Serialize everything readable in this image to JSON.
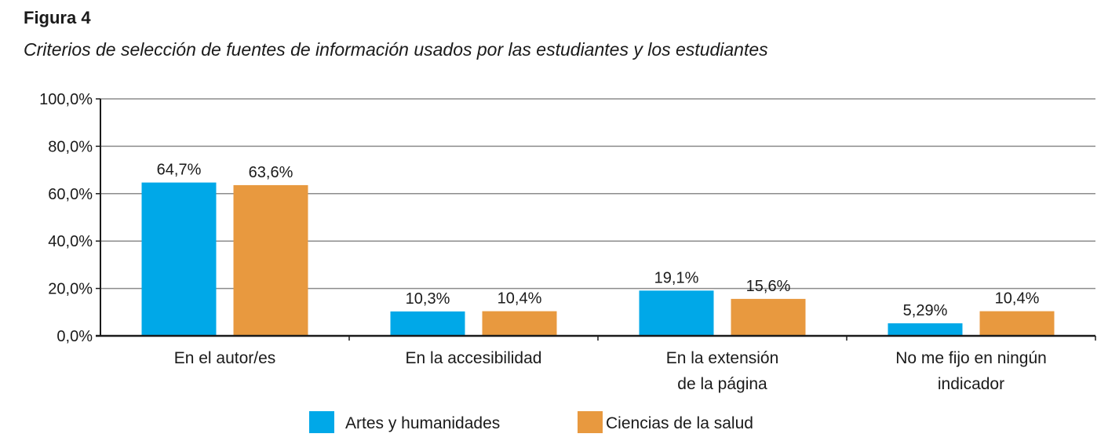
{
  "figure": {
    "label": "Figura 4",
    "title": "Criterios de selección de fuentes de información usados por las estudiantes y los estudiantes"
  },
  "chart_data": {
    "type": "bar",
    "categories": [
      [
        "En el autor/es"
      ],
      [
        "En la accesibilidad"
      ],
      [
        "En la extensión",
        "de la página"
      ],
      [
        "No me fijo en ningún",
        "indicador"
      ]
    ],
    "series": [
      {
        "name": "Artes y humanidades",
        "color": "#00a8e8",
        "values": [
          64.7,
          10.3,
          19.1,
          5.29
        ],
        "labels": [
          "64,7%",
          "10,3%",
          "19,1%",
          "5,29%"
        ]
      },
      {
        "name": "Ciencias de la salud",
        "color": "#e8993f",
        "values": [
          63.6,
          10.4,
          15.6,
          10.4
        ],
        "labels": [
          "63,6%",
          "10,4%",
          "15,6%",
          "10,4%"
        ]
      }
    ],
    "ylim": [
      0,
      100
    ],
    "yticks": [
      0,
      20,
      40,
      60,
      80,
      100
    ],
    "ytick_labels": [
      "0,0%",
      "20,0%",
      "40,0%",
      "60,0%",
      "80,0%",
      "100,0%"
    ],
    "grid": true,
    "legend": "bottom-center"
  }
}
